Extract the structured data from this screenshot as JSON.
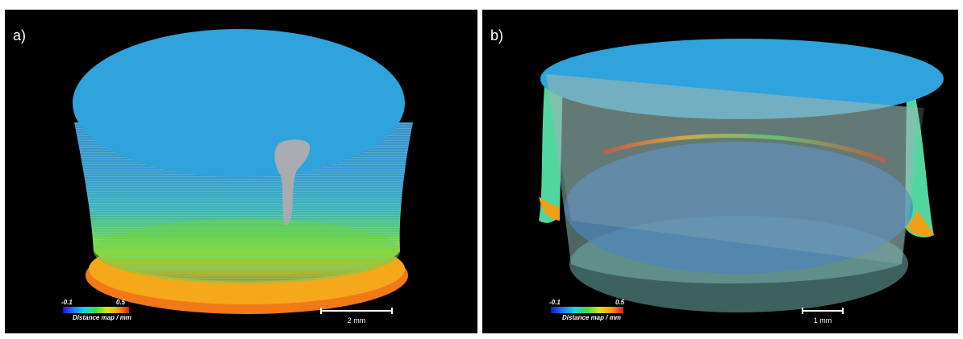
{
  "panels": [
    {
      "label": "a)",
      "colorbar": {
        "min": "-0.1",
        "max": "0.5",
        "title": "Distance map / mm"
      },
      "scalebar": "2 mm"
    },
    {
      "label": "b)",
      "colorbar": {
        "min": "-0.1",
        "max": "0.5",
        "title": "Distance map / mm"
      },
      "scalebar": "1 mm"
    }
  ],
  "colors": {
    "background": "#000000",
    "top_face": "#2ea3dc",
    "colormap": [
      "#1515d8",
      "#1e7bff",
      "#16d8e8",
      "#3cdc48",
      "#d4e61a",
      "#ff9a12",
      "#e21c10"
    ]
  }
}
